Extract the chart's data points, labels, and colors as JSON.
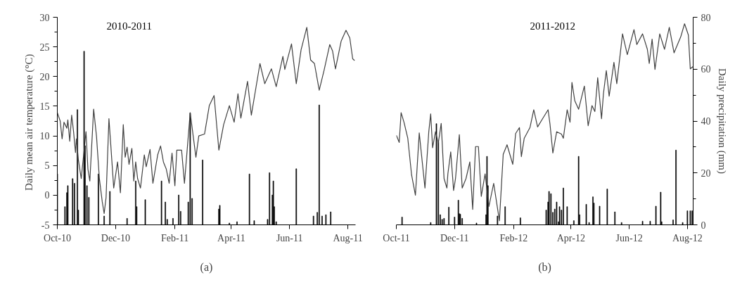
{
  "chart_data": [
    {
      "type": "line",
      "title": "2010-2011",
      "ylabel": "Daily  mean air temperature (°C)",
      "annotations": [
        "(a)"
      ],
      "xlim": [
        "2010-10-01",
        "2011-08-09"
      ],
      "xticks": [
        {
          "value": "2010-10-01",
          "label": "Oct-10"
        },
        {
          "value": "2010-12-01",
          "label": "Dec-10"
        },
        {
          "value": "2011-02-01",
          "label": "Feb-11"
        },
        {
          "value": "2011-04-01",
          "label": "Apr-11"
        },
        {
          "value": "2011-06-01",
          "label": "Jun-11"
        },
        {
          "value": "2011-08-01",
          "label": "Aug-11"
        }
      ],
      "ylim": [
        -5,
        30
      ],
      "yticks": [
        -5,
        0,
        5,
        10,
        15,
        20,
        25,
        30
      ],
      "y2lim": [
        0,
        80
      ],
      "grid": false,
      "series": [
        {
          "type": "bar",
          "axis": "y2",
          "color": "#000000",
          "x": [
            "2010-10-01",
            "2010-10-09",
            "2010-10-11",
            "2010-10-12",
            "2010-10-17",
            "2010-10-19",
            "2010-10-22",
            "2010-10-23",
            "2010-10-29",
            "2010-10-30",
            "2010-11-01",
            "2010-11-03",
            "2010-11-13",
            "2010-11-19",
            "2010-11-25",
            "2010-12-13",
            "2010-12-22",
            "2010-12-23",
            "2011-01-01",
            "2011-01-18",
            "2011-01-22",
            "2011-01-24",
            "2011-01-30",
            "2011-02-05",
            "2011-02-07",
            "2011-02-15",
            "2011-02-17",
            "2011-02-19",
            "2011-03-02",
            "2011-03-19",
            "2011-03-20",
            "2011-03-30",
            "2011-04-07",
            "2011-04-20",
            "2011-04-25",
            "2011-05-09",
            "2011-05-11",
            "2011-05-14",
            "2011-05-15",
            "2011-05-16",
            "2011-05-18",
            "2011-06-08",
            "2011-06-26",
            "2011-06-30",
            "2011-07-02",
            "2011-07-05",
            "2011-07-09",
            "2011-07-14"
          ],
          "values": [
            19.6,
            7.0,
            12.4,
            15.1,
            17.8,
            16.0,
            44.4,
            5.7,
            66.9,
            30.5,
            15.1,
            10.6,
            19.6,
            3.4,
            12.9,
            2.5,
            16.9,
            7.0,
            9.7,
            16.9,
            8.8,
            2.1,
            2.5,
            11.5,
            5.2,
            8.8,
            43.1,
            10.2,
            25.0,
            6.1,
            7.5,
            0.7,
            1.2,
            19.6,
            1.6,
            2.1,
            20.1,
            11.5,
            16.9,
            7.0,
            1.2,
            21.6,
            3.4,
            4.8,
            46.2,
            3.4,
            3.9,
            5.0
          ]
        },
        {
          "axis": "y",
          "color": "#404040",
          "x": [
            "2010-10-01",
            "2010-10-04",
            "2010-10-06",
            "2010-10-08",
            "2010-10-11",
            "2010-10-12",
            "2010-10-14",
            "2010-10-16",
            "2010-10-18",
            "2010-10-20",
            "2010-10-21",
            "2010-10-23",
            "2010-10-26",
            "2010-10-31",
            "2010-11-02",
            "2010-11-04",
            "2010-11-08",
            "2010-11-11",
            "2010-11-14",
            "2010-11-17",
            "2010-11-19",
            "2010-11-21",
            "2010-11-24",
            "2010-11-26",
            "2010-11-29",
            "2010-12-03",
            "2010-12-06",
            "2010-12-09",
            "2010-12-11",
            "2010-12-13",
            "2010-12-15",
            "2010-12-18",
            "2010-12-20",
            "2010-12-22",
            "2010-12-24",
            "2010-12-27",
            "2010-12-31",
            "2011-01-02",
            "2011-01-06",
            "2011-01-09",
            "2011-01-14",
            "2011-01-17",
            "2011-01-20",
            "2011-01-23",
            "2011-01-26",
            "2011-01-29",
            "2011-02-01",
            "2011-02-03",
            "2011-02-08",
            "2011-02-11",
            "2011-02-17",
            "2011-02-23",
            "2011-02-26",
            "2011-03-04",
            "2011-03-09",
            "2011-03-14",
            "2011-03-19",
            "2011-03-24",
            "2011-03-30",
            "2011-04-04",
            "2011-04-08",
            "2011-04-11",
            "2011-04-18",
            "2011-04-22",
            "2011-05-01",
            "2011-05-06",
            "2011-05-13",
            "2011-05-18",
            "2011-05-25",
            "2011-05-27",
            "2011-06-03",
            "2011-06-08",
            "2011-06-13",
            "2011-06-19",
            "2011-06-23",
            "2011-06-27",
            "2011-07-02",
            "2011-07-07",
            "2011-07-13",
            "2011-07-16",
            "2011-07-19",
            "2011-07-25",
            "2011-07-30",
            "2011-08-03",
            "2011-08-06",
            "2011-08-08"
          ],
          "values": [
            13.9,
            12.5,
            9.5,
            12.3,
            11.3,
            12.7,
            9.1,
            13.5,
            10.7,
            7.2,
            9.5,
            6.0,
            2.8,
            10.7,
            4.4,
            2.4,
            14.5,
            9.9,
            2.8,
            -1.1,
            -3.1,
            -0.4,
            12.9,
            8.3,
            1.2,
            5.6,
            0.4,
            11.9,
            6.4,
            8.1,
            5.2,
            7.9,
            2.4,
            5.6,
            2.8,
            1.2,
            6.8,
            4.8,
            7.7,
            2.0,
            6.8,
            8.3,
            5.6,
            4.4,
            2.0,
            7.1,
            1.6,
            7.6,
            7.6,
            2.0,
            13.9,
            6.4,
            10.0,
            10.3,
            15.1,
            16.8,
            7.6,
            11.9,
            15.1,
            12.3,
            17.1,
            13.0,
            19.2,
            13.5,
            22.2,
            18.8,
            21.3,
            18.3,
            23.4,
            21.2,
            25.5,
            18.8,
            24.5,
            28.3,
            22.8,
            22.2,
            17.7,
            21.0,
            25.4,
            24.3,
            21.3,
            26.0,
            27.8,
            26.5,
            23.0,
            22.7
          ]
        }
      ]
    },
    {
      "type": "line",
      "title": "2011-2012",
      "y2label": "Daily precipitation (mm)",
      "annotations": [
        "(b)"
      ],
      "xlim": [
        "2011-10-01",
        "2012-08-07"
      ],
      "xticks": [
        {
          "value": "2011-10-01",
          "label": "Oct-11"
        },
        {
          "value": "2011-12-01",
          "label": "Dec-11"
        },
        {
          "value": "2012-02-01",
          "label": "Feb-12"
        },
        {
          "value": "2012-04-01",
          "label": "Apr-12"
        },
        {
          "value": "2012-06-01",
          "label": "Jun-12"
        },
        {
          "value": "2012-08-01",
          "label": "Aug-12"
        }
      ],
      "ylim": [
        -5,
        30
      ],
      "y2lim": [
        0,
        80
      ],
      "y2ticks": [
        0,
        20,
        40,
        60,
        80
      ],
      "tick_labels": [
        "x",
        "y2"
      ],
      "grid": false,
      "series": [
        {
          "type": "bar",
          "axis": "y2",
          "color": "#000000",
          "x": [
            "2011-10-07",
            "2011-11-06",
            "2011-11-12",
            "2011-11-14",
            "2011-11-16",
            "2011-11-18",
            "2011-11-20",
            "2011-11-25",
            "2011-12-01",
            "2011-12-05",
            "2011-12-06",
            "2011-12-07",
            "2011-12-09",
            "2011-12-24",
            "2012-01-03",
            "2012-01-04",
            "2012-01-05",
            "2012-01-15",
            "2012-01-23",
            "2012-02-08",
            "2012-03-06",
            "2012-03-08",
            "2012-03-09",
            "2012-03-11",
            "2012-03-13",
            "2012-03-15",
            "2012-03-17",
            "2012-03-19",
            "2012-03-20",
            "2012-03-22",
            "2012-03-24",
            "2012-03-28",
            "2012-04-04",
            "2012-04-09",
            "2012-04-10",
            "2012-04-17",
            "2012-04-20",
            "2012-04-24",
            "2012-04-25",
            "2012-05-01",
            "2012-05-09",
            "2012-05-17",
            "2012-05-24",
            "2012-06-15",
            "2012-06-23",
            "2012-06-29",
            "2012-07-04",
            "2012-07-05",
            "2012-07-17",
            "2012-07-20",
            "2012-07-27",
            "2012-08-01",
            "2012-08-04",
            "2012-08-06"
          ],
          "values": [
            3.0,
            0.9,
            39.0,
            32.0,
            3.9,
            2.1,
            2.5,
            6.8,
            3.0,
            9.5,
            4.3,
            4.1,
            2.5,
            0.7,
            3.9,
            26.4,
            15.1,
            3.4,
            7.0,
            2.7,
            5.7,
            8.8,
            12.9,
            12.0,
            4.8,
            6.1,
            8.8,
            1.2,
            7.0,
            5.7,
            14.2,
            7.0,
            1.6,
            26.4,
            3.9,
            7.9,
            0.9,
            10.8,
            8.4,
            7.2,
            13.8,
            5.0,
            0.9,
            1.4,
            1.4,
            7.2,
            12.6,
            1.2,
            1.9,
            28.8,
            0.9,
            5.4,
            5.4,
            5.4
          ]
        },
        {
          "axis": "y",
          "color": "#404040",
          "x": [
            "2011-10-01",
            "2011-10-04",
            "2011-10-06",
            "2011-10-09",
            "2011-10-13",
            "2011-10-17",
            "2011-10-21",
            "2011-10-25",
            "2011-10-31",
            "2011-11-04",
            "2011-11-06",
            "2011-11-08",
            "2011-11-11",
            "2011-11-14",
            "2011-11-17",
            "2011-11-20",
            "2011-11-23",
            "2011-11-24",
            "2011-11-27",
            "2011-11-30",
            "2011-12-02",
            "2011-12-06",
            "2011-12-09",
            "2011-12-13",
            "2011-12-17",
            "2011-12-20",
            "2011-12-23",
            "2011-12-26",
            "2011-12-29",
            "2012-01-02",
            "2012-01-06",
            "2012-01-11",
            "2012-01-17",
            "2012-01-21",
            "2012-01-25",
            "2012-01-31",
            "2012-02-03",
            "2012-02-07",
            "2012-02-09",
            "2012-02-12",
            "2012-02-18",
            "2012-02-22",
            "2012-02-26",
            "2012-03-03",
            "2012-03-08",
            "2012-03-10",
            "2012-03-13",
            "2012-03-17",
            "2012-03-22",
            "2012-03-24",
            "2012-03-28",
            "2012-03-31",
            "2012-04-02",
            "2012-04-05",
            "2012-04-09",
            "2012-04-15",
            "2012-04-19",
            "2012-04-23",
            "2012-04-26",
            "2012-04-29",
            "2012-05-03",
            "2012-05-05",
            "2012-05-08",
            "2012-05-11",
            "2012-05-16",
            "2012-05-19",
            "2012-05-25",
            "2012-05-30",
            "2012-06-06",
            "2012-06-09",
            "2012-06-15",
            "2012-06-20",
            "2012-06-22",
            "2012-06-25",
            "2012-06-28",
            "2012-07-03",
            "2012-07-08",
            "2012-07-13",
            "2012-07-18",
            "2012-07-25",
            "2012-07-29",
            "2012-08-02",
            "2012-08-04",
            "2012-08-07"
          ],
          "values": [
            10.1,
            8.9,
            13.9,
            12.3,
            9.6,
            3.4,
            0.0,
            10.5,
            1.2,
            10.7,
            13.7,
            8.0,
            10.7,
            8.8,
            12.1,
            2.8,
            1.2,
            3.6,
            7.3,
            0.8,
            2.8,
            10.2,
            1.2,
            2.8,
            5.6,
            -2.4,
            8.2,
            8.2,
            -0.2,
            3.6,
            -1.9,
            2.0,
            -4.3,
            6.9,
            8.5,
            5.2,
            10.4,
            11.4,
            6.5,
            9.6,
            11.4,
            14.4,
            11.5,
            13.1,
            14.4,
            12.0,
            7.1,
            10.7,
            10.3,
            9.6,
            14.4,
            12.3,
            19.0,
            15.9,
            14.5,
            18.4,
            11.7,
            15.1,
            14.1,
            19.8,
            12.9,
            17.1,
            21.0,
            16.7,
            22.4,
            18.8,
            27.2,
            23.7,
            27.9,
            25.4,
            27.2,
            24.6,
            22.2,
            26.3,
            21.2,
            27.2,
            24.6,
            28.3,
            24.0,
            26.7,
            28.9,
            27.0,
            21.3,
            21.7
          ]
        }
      ]
    }
  ]
}
